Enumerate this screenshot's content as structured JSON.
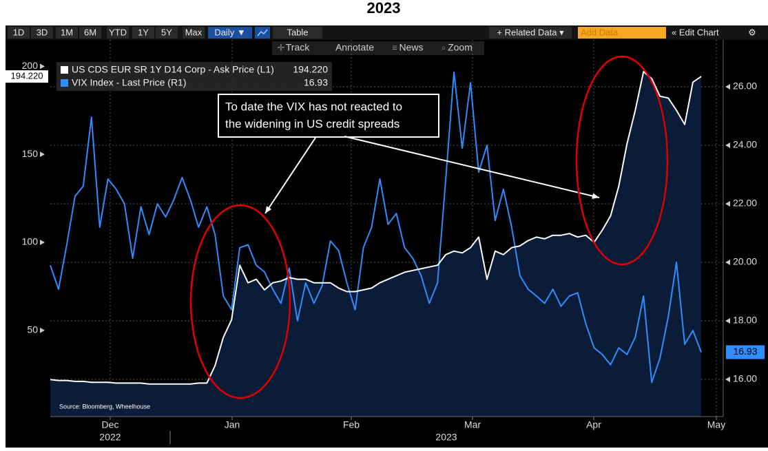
{
  "title": "2023",
  "toolbar": {
    "ranges": [
      "1D",
      "3D",
      "1M",
      "6M",
      "YTD",
      "1Y",
      "5Y",
      "Max"
    ],
    "frequency": "Daily ▼",
    "table": "Table",
    "related": "+ Related Data ▾",
    "add_data": "Add Data",
    "edit": "« Edit Chart",
    "tools": [
      "Track",
      "Annotate",
      "News",
      "Zoom"
    ]
  },
  "chart_data": {
    "type": "line",
    "annotation": [
      "To date the VIX has not reacted to",
      "the widening in US credit spreads"
    ],
    "source": "Source: Bloomberg, Wheelhouse",
    "months": [
      "Dec",
      "Jan",
      "Feb",
      "Mar",
      "Apr",
      "May"
    ],
    "years": [
      "2022",
      "2023"
    ],
    "ylim": [
      1,
      215
    ],
    "yticks": [
      50,
      100,
      150,
      200
    ],
    "y2lim": [
      14.73,
      27.6
    ],
    "y2ticks": [
      {
        "value": 16,
        "label": "16.00"
      },
      {
        "value": 18,
        "label": "18.00"
      },
      {
        "value": 20,
        "label": "20.00"
      },
      {
        "value": 22,
        "label": "22.00"
      },
      {
        "value": 24,
        "label": "24.00"
      },
      {
        "value": 26,
        "label": "26.00"
      }
    ],
    "grid": true,
    "series": [
      {
        "name": "US CDS EUR SR 1Y D14 Corp - Ask Price (L1)",
        "color": "#ffffff",
        "fill": "#0b1c38",
        "last_label": "194.220",
        "values": [
          22,
          21.5,
          21.5,
          21,
          21,
          20.5,
          20.5,
          20.5,
          20,
          20,
          20,
          20,
          19.5,
          19.5,
          19.5,
          19.5,
          19.5,
          19.5,
          20,
          20,
          30,
          46,
          56,
          87,
          77,
          79,
          73,
          77,
          78,
          80,
          79,
          79,
          77,
          77,
          77,
          74,
          72,
          72,
          73,
          74,
          77,
          79,
          81,
          83,
          84,
          85,
          86,
          87,
          93,
          95,
          94,
          97,
          103,
          79,
          95,
          93,
          97,
          98,
          101,
          103,
          102,
          104,
          104,
          105,
          103,
          104,
          100,
          107,
          115,
          132,
          156,
          175,
          197,
          193,
          183,
          182,
          175,
          167,
          191,
          194.22
        ]
      },
      {
        "name": "VIX Index - Last Price (R1)",
        "color": "#2f8dff",
        "axis": "y2",
        "last_label": "16.93",
        "values": [
          19.9,
          19.08,
          20.6,
          22.26,
          22.6,
          24.96,
          21.2,
          22.85,
          22.5,
          22.0,
          20.14,
          21.9,
          20.95,
          22.0,
          21.55,
          22.14,
          22.9,
          22.14,
          21.2,
          21.9,
          20.95,
          18.85,
          18.38,
          20.5,
          20.6,
          19.9,
          19.67,
          19.08,
          18.6,
          19.8,
          18.0,
          19.3,
          18.6,
          19.2,
          20.73,
          20.4,
          19.3,
          18.38,
          20.5,
          21.2,
          22.85,
          21.3,
          21.67,
          20.5,
          20.14,
          19.55,
          18.6,
          19.3,
          22.85,
          26.5,
          23.9,
          26.14,
          23.08,
          24.0,
          21.43,
          22.5,
          21.2,
          19.55,
          19.08,
          18.85,
          18.6,
          19.08,
          18.5,
          18.85,
          18.96,
          17.9,
          17.08,
          16.85,
          16.5,
          17.08,
          16.85,
          17.44,
          18.85,
          15.9,
          16.73,
          18.14,
          20.0,
          17.2,
          17.67,
          16.93
        ]
      }
    ]
  }
}
